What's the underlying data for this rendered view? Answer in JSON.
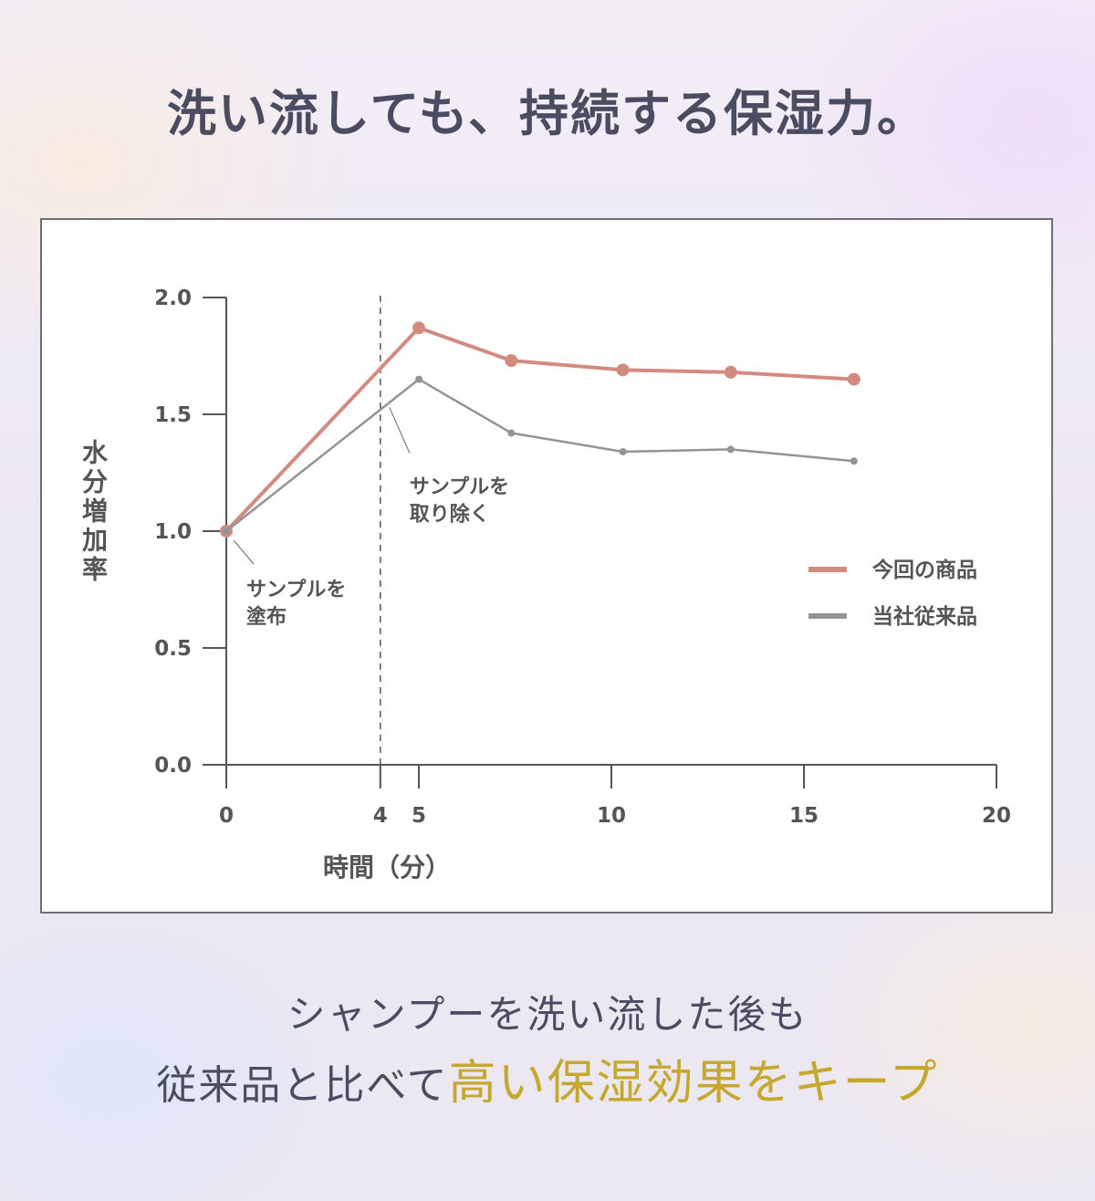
{
  "headline": "洗い流しても、持続する保湿力。",
  "caption": {
    "line1": "シャンプーを洗い流した後も",
    "line2_plain": "従来品と比べて",
    "line2_highlight": "高い保湿効果をキープ"
  },
  "colors": {
    "text": "#4a4d62",
    "highlight": "#c6a82e",
    "product": "#d38a80",
    "conventional": "#949494",
    "axis": "#555555"
  },
  "chart_data": {
    "type": "line",
    "xlabel": "時間（分）",
    "ylabel": "水分増加率",
    "xlim": [
      0,
      20
    ],
    "ylim": [
      0,
      2
    ],
    "x_ticks": [
      0,
      4,
      5,
      10,
      15,
      20
    ],
    "y_ticks": [
      "0.0",
      "0.5",
      "1.0",
      "1.5",
      "2.0"
    ],
    "grid": false,
    "legend_position": "right",
    "series": [
      {
        "name": "今回の商品",
        "color": "#d38a80",
        "x": [
          0,
          5,
          7.4,
          10.3,
          13.1,
          16.3
        ],
        "y": [
          1.0,
          1.87,
          1.73,
          1.69,
          1.68,
          1.65
        ]
      },
      {
        "name": "当社従来品",
        "color": "#949494",
        "x": [
          0,
          5,
          7.4,
          10.3,
          13.1,
          16.3
        ],
        "y": [
          1.0,
          1.65,
          1.42,
          1.34,
          1.35,
          1.3
        ]
      }
    ],
    "annotations": [
      {
        "x": 0,
        "lines": [
          "サンプルを",
          "塗布"
        ]
      },
      {
        "x": 4,
        "lines": [
          "サンプルを",
          "取り除く"
        ]
      }
    ],
    "vertical_marker_x": 4
  }
}
